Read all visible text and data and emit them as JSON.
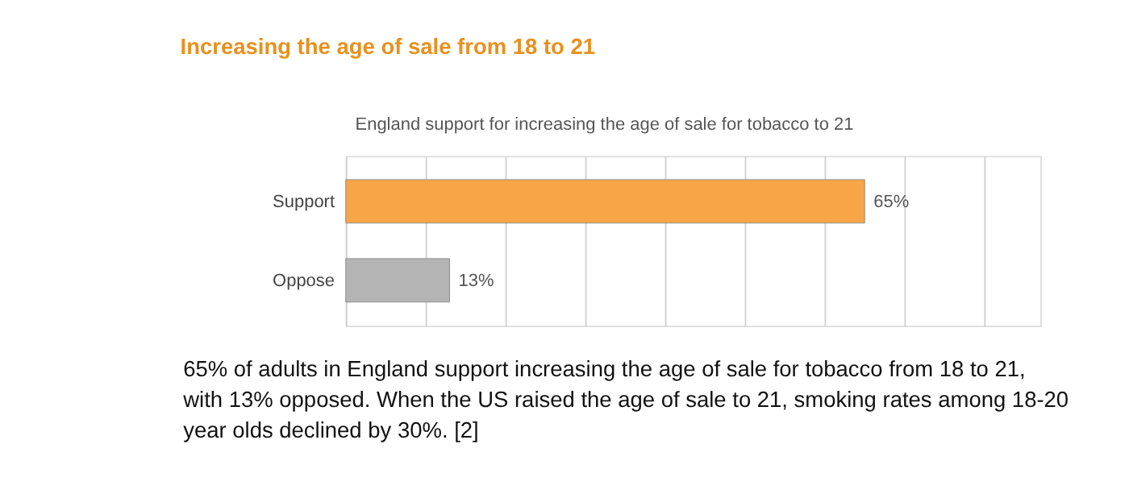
{
  "chart_data": {
    "type": "bar",
    "orientation": "horizontal",
    "title": "Increasing the age of sale from 18 to 21",
    "subtitle": "England  support  for increasing  the  age of sale for tobacco  to 21",
    "categories": [
      "Support",
      "Oppose"
    ],
    "values": [
      65,
      13
    ],
    "colors": [
      "#f7a546",
      "#b4b4b4"
    ],
    "data_labels": true,
    "value_labels": [
      "65%",
      "13%"
    ],
    "xlim": [
      0,
      87
    ],
    "xticks": [
      {
        "value": 0,
        "label": null
      },
      {
        "value": 10,
        "label": null
      },
      {
        "value": 20,
        "label": null
      },
      {
        "value": 30,
        "label": null
      },
      {
        "value": 40,
        "label": null
      },
      {
        "value": 50,
        "label": null
      },
      {
        "value": 60,
        "label": null
      },
      {
        "value": 70,
        "label": null
      },
      {
        "value": 80,
        "label": null
      }
    ],
    "tick_labels": "y",
    "grid": "x",
    "annotations": [
      "65% of adults in England support increasing the age of sale for tobacco from 18 to 21, with 13% opposed. When the US raised the age of sale to 21, smoking rates among 18-20 year olds declined by 30%. [2]"
    ]
  }
}
